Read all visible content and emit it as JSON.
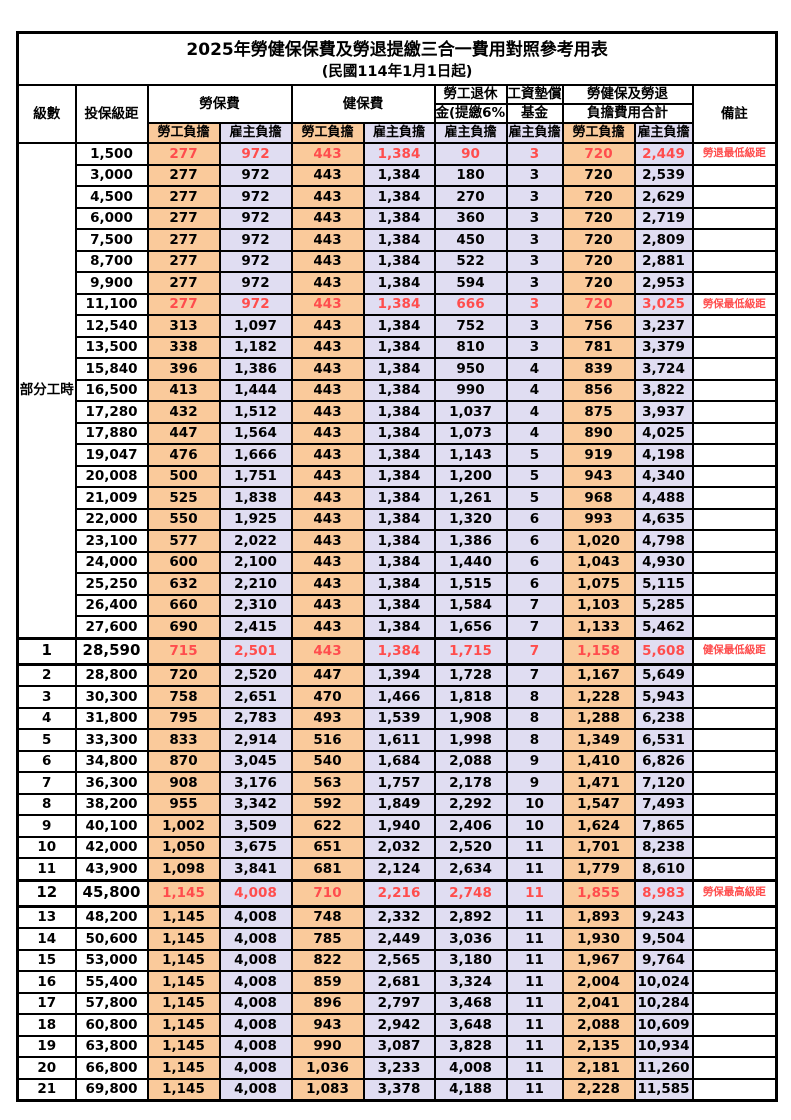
{
  "title": "2025年勞健保保費及勞退提繳三合一費用對照參考用表",
  "subtitle": "(民國114年1月1日起)",
  "header": {
    "level": "級數",
    "salary": "投保級距",
    "labor": "勞保費",
    "health": "健保費",
    "pension_line1": "勞工退休",
    "pension_line2": "金(提繳6%)",
    "wage_fund_line1": "工資墊償",
    "wage_fund_line2": "基金",
    "total_line1": "勞健保及勞退",
    "total_line2": "負擔費用合計",
    "note": "備註",
    "employee": "勞工負擔",
    "employer": "雇主負擔"
  },
  "part_time_label": "部分工時",
  "colors": {
    "employee_column": "#FACA9B",
    "employer_column": "#E0DDF2",
    "highlight_text": "#FF4D4D",
    "grid": "#000000"
  },
  "rows": [
    {
      "level": "",
      "salary": "1,500",
      "v": [
        "277",
        "972",
        "443",
        "1,384",
        "90",
        "3",
        "720",
        "2,449"
      ],
      "note": "勞退最低級距",
      "red": true,
      "em": false
    },
    {
      "level": "",
      "salary": "3,000",
      "v": [
        "277",
        "972",
        "443",
        "1,384",
        "180",
        "3",
        "720",
        "2,539"
      ],
      "note": "",
      "red": false,
      "em": false
    },
    {
      "level": "",
      "salary": "4,500",
      "v": [
        "277",
        "972",
        "443",
        "1,384",
        "270",
        "3",
        "720",
        "2,629"
      ],
      "note": "",
      "red": false,
      "em": false
    },
    {
      "level": "",
      "salary": "6,000",
      "v": [
        "277",
        "972",
        "443",
        "1,384",
        "360",
        "3",
        "720",
        "2,719"
      ],
      "note": "",
      "red": false,
      "em": false
    },
    {
      "level": "",
      "salary": "7,500",
      "v": [
        "277",
        "972",
        "443",
        "1,384",
        "450",
        "3",
        "720",
        "2,809"
      ],
      "note": "",
      "red": false,
      "em": false
    },
    {
      "level": "",
      "salary": "8,700",
      "v": [
        "277",
        "972",
        "443",
        "1,384",
        "522",
        "3",
        "720",
        "2,881"
      ],
      "note": "",
      "red": false,
      "em": false
    },
    {
      "level": "",
      "salary": "9,900",
      "v": [
        "277",
        "972",
        "443",
        "1,384",
        "594",
        "3",
        "720",
        "2,953"
      ],
      "note": "",
      "red": false,
      "em": false
    },
    {
      "level": "",
      "salary": "11,100",
      "v": [
        "277",
        "972",
        "443",
        "1,384",
        "666",
        "3",
        "720",
        "3,025"
      ],
      "note": "勞保最低級距",
      "red": true,
      "em": false
    },
    {
      "level": "",
      "salary": "12,540",
      "v": [
        "313",
        "1,097",
        "443",
        "1,384",
        "752",
        "3",
        "756",
        "3,237"
      ],
      "note": "",
      "red": false,
      "em": false
    },
    {
      "level": "",
      "salary": "13,500",
      "v": [
        "338",
        "1,182",
        "443",
        "1,384",
        "810",
        "3",
        "781",
        "3,379"
      ],
      "note": "",
      "red": false,
      "em": false
    },
    {
      "level": "",
      "salary": "15,840",
      "v": [
        "396",
        "1,386",
        "443",
        "1,384",
        "950",
        "4",
        "839",
        "3,724"
      ],
      "note": "",
      "red": false,
      "em": false
    },
    {
      "level": "",
      "salary": "16,500",
      "v": [
        "413",
        "1,444",
        "443",
        "1,384",
        "990",
        "4",
        "856",
        "3,822"
      ],
      "note": "",
      "red": false,
      "em": false
    },
    {
      "level": "",
      "salary": "17,280",
      "v": [
        "432",
        "1,512",
        "443",
        "1,384",
        "1,037",
        "4",
        "875",
        "3,937"
      ],
      "note": "",
      "red": false,
      "em": false
    },
    {
      "level": "",
      "salary": "17,880",
      "v": [
        "447",
        "1,564",
        "443",
        "1,384",
        "1,073",
        "4",
        "890",
        "4,025"
      ],
      "note": "",
      "red": false,
      "em": false
    },
    {
      "level": "",
      "salary": "19,047",
      "v": [
        "476",
        "1,666",
        "443",
        "1,384",
        "1,143",
        "5",
        "919",
        "4,198"
      ],
      "note": "",
      "red": false,
      "em": false
    },
    {
      "level": "",
      "salary": "20,008",
      "v": [
        "500",
        "1,751",
        "443",
        "1,384",
        "1,200",
        "5",
        "943",
        "4,340"
      ],
      "note": "",
      "red": false,
      "em": false
    },
    {
      "level": "",
      "salary": "21,009",
      "v": [
        "525",
        "1,838",
        "443",
        "1,384",
        "1,261",
        "5",
        "968",
        "4,488"
      ],
      "note": "",
      "red": false,
      "em": false
    },
    {
      "level": "",
      "salary": "22,000",
      "v": [
        "550",
        "1,925",
        "443",
        "1,384",
        "1,320",
        "6",
        "993",
        "4,635"
      ],
      "note": "",
      "red": false,
      "em": false
    },
    {
      "level": "",
      "salary": "23,100",
      "v": [
        "577",
        "2,022",
        "443",
        "1,384",
        "1,386",
        "6",
        "1,020",
        "4,798"
      ],
      "note": "",
      "red": false,
      "em": false
    },
    {
      "level": "",
      "salary": "24,000",
      "v": [
        "600",
        "2,100",
        "443",
        "1,384",
        "1,440",
        "6",
        "1,043",
        "4,930"
      ],
      "note": "",
      "red": false,
      "em": false
    },
    {
      "level": "",
      "salary": "25,250",
      "v": [
        "632",
        "2,210",
        "443",
        "1,384",
        "1,515",
        "6",
        "1,075",
        "5,115"
      ],
      "note": "",
      "red": false,
      "em": false
    },
    {
      "level": "",
      "salary": "26,400",
      "v": [
        "660",
        "2,310",
        "443",
        "1,384",
        "1,584",
        "7",
        "1,103",
        "5,285"
      ],
      "note": "",
      "red": false,
      "em": false
    },
    {
      "level": "",
      "salary": "27,600",
      "v": [
        "690",
        "2,415",
        "443",
        "1,384",
        "1,656",
        "7",
        "1,133",
        "5,462"
      ],
      "note": "",
      "red": false,
      "em": false
    },
    {
      "level": "1",
      "salary": "28,590",
      "v": [
        "715",
        "2,501",
        "443",
        "1,384",
        "1,715",
        "7",
        "1,158",
        "5,608"
      ],
      "note": "健保最低級距",
      "red": true,
      "em": true
    },
    {
      "level": "2",
      "salary": "28,800",
      "v": [
        "720",
        "2,520",
        "447",
        "1,394",
        "1,728",
        "7",
        "1,167",
        "5,649"
      ],
      "note": "",
      "red": false,
      "em": false
    },
    {
      "level": "3",
      "salary": "30,300",
      "v": [
        "758",
        "2,651",
        "470",
        "1,466",
        "1,818",
        "8",
        "1,228",
        "5,943"
      ],
      "note": "",
      "red": false,
      "em": false
    },
    {
      "level": "4",
      "salary": "31,800",
      "v": [
        "795",
        "2,783",
        "493",
        "1,539",
        "1,908",
        "8",
        "1,288",
        "6,238"
      ],
      "note": "",
      "red": false,
      "em": false
    },
    {
      "level": "5",
      "salary": "33,300",
      "v": [
        "833",
        "2,914",
        "516",
        "1,611",
        "1,998",
        "8",
        "1,349",
        "6,531"
      ],
      "note": "",
      "red": false,
      "em": false
    },
    {
      "level": "6",
      "salary": "34,800",
      "v": [
        "870",
        "3,045",
        "540",
        "1,684",
        "2,088",
        "9",
        "1,410",
        "6,826"
      ],
      "note": "",
      "red": false,
      "em": false
    },
    {
      "level": "7",
      "salary": "36,300",
      "v": [
        "908",
        "3,176",
        "563",
        "1,757",
        "2,178",
        "9",
        "1,471",
        "7,120"
      ],
      "note": "",
      "red": false,
      "em": false
    },
    {
      "level": "8",
      "salary": "38,200",
      "v": [
        "955",
        "3,342",
        "592",
        "1,849",
        "2,292",
        "10",
        "1,547",
        "7,493"
      ],
      "note": "",
      "red": false,
      "em": false
    },
    {
      "level": "9",
      "salary": "40,100",
      "v": [
        "1,002",
        "3,509",
        "622",
        "1,940",
        "2,406",
        "10",
        "1,624",
        "7,865"
      ],
      "note": "",
      "red": false,
      "em": false
    },
    {
      "level": "10",
      "salary": "42,000",
      "v": [
        "1,050",
        "3,675",
        "651",
        "2,032",
        "2,520",
        "11",
        "1,701",
        "8,238"
      ],
      "note": "",
      "red": false,
      "em": false
    },
    {
      "level": "11",
      "salary": "43,900",
      "v": [
        "1,098",
        "3,841",
        "681",
        "2,124",
        "2,634",
        "11",
        "1,779",
        "8,610"
      ],
      "note": "",
      "red": false,
      "em": false
    },
    {
      "level": "12",
      "salary": "45,800",
      "v": [
        "1,145",
        "4,008",
        "710",
        "2,216",
        "2,748",
        "11",
        "1,855",
        "8,983"
      ],
      "note": "勞保最高級距",
      "red": true,
      "em": true
    },
    {
      "level": "13",
      "salary": "48,200",
      "v": [
        "1,145",
        "4,008",
        "748",
        "2,332",
        "2,892",
        "11",
        "1,893",
        "9,243"
      ],
      "note": "",
      "red": false,
      "em": false
    },
    {
      "level": "14",
      "salary": "50,600",
      "v": [
        "1,145",
        "4,008",
        "785",
        "2,449",
        "3,036",
        "11",
        "1,930",
        "9,504"
      ],
      "note": "",
      "red": false,
      "em": false
    },
    {
      "level": "15",
      "salary": "53,000",
      "v": [
        "1,145",
        "4,008",
        "822",
        "2,565",
        "3,180",
        "11",
        "1,967",
        "9,764"
      ],
      "note": "",
      "red": false,
      "em": false
    },
    {
      "level": "16",
      "salary": "55,400",
      "v": [
        "1,145",
        "4,008",
        "859",
        "2,681",
        "3,324",
        "11",
        "2,004",
        "10,024"
      ],
      "note": "",
      "red": false,
      "em": false
    },
    {
      "level": "17",
      "salary": "57,800",
      "v": [
        "1,145",
        "4,008",
        "896",
        "2,797",
        "3,468",
        "11",
        "2,041",
        "10,284"
      ],
      "note": "",
      "red": false,
      "em": false
    },
    {
      "level": "18",
      "salary": "60,800",
      "v": [
        "1,145",
        "4,008",
        "943",
        "2,942",
        "3,648",
        "11",
        "2,088",
        "10,609"
      ],
      "note": "",
      "red": false,
      "em": false
    },
    {
      "level": "19",
      "salary": "63,800",
      "v": [
        "1,145",
        "4,008",
        "990",
        "3,087",
        "3,828",
        "11",
        "2,135",
        "10,934"
      ],
      "note": "",
      "red": false,
      "em": false
    },
    {
      "level": "20",
      "salary": "66,800",
      "v": [
        "1,145",
        "4,008",
        "1,036",
        "3,233",
        "4,008",
        "11",
        "2,181",
        "11,260"
      ],
      "note": "",
      "red": false,
      "em": false
    },
    {
      "level": "21",
      "salary": "69,800",
      "v": [
        "1,145",
        "4,008",
        "1,083",
        "3,378",
        "4,188",
        "11",
        "2,228",
        "11,585"
      ],
      "note": "",
      "red": false,
      "em": false
    }
  ]
}
